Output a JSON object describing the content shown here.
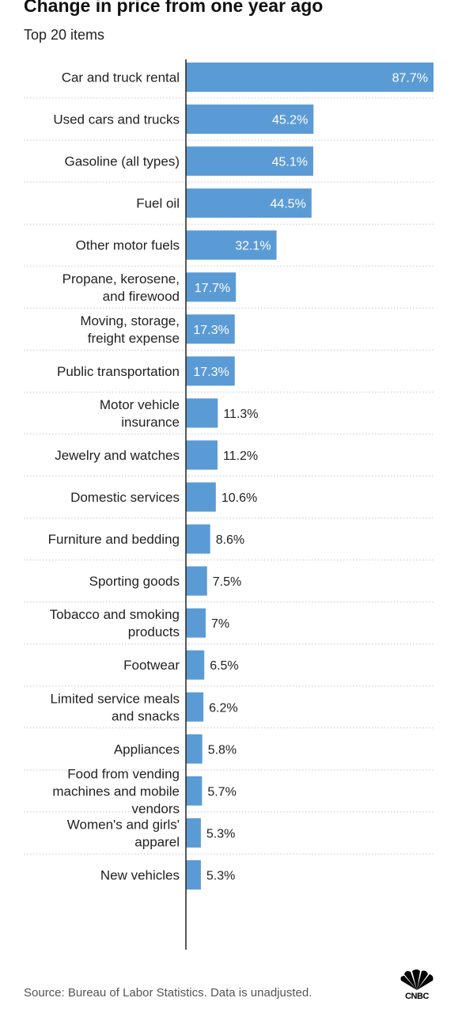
{
  "title": "Change in price from one year ago",
  "subtitle": "Top 20 items",
  "source": "Source: Bureau of Labor Statistics. Data is unadjusted.",
  "logo": {
    "text": "CNBC",
    "icon": "peacock-logo-icon"
  },
  "colors": {
    "bar": "#5b9bd5",
    "grid": "#c8c8c8",
    "axis": "#222222"
  },
  "chart_data": {
    "type": "bar",
    "orientation": "horizontal",
    "title": "Change in price from one year ago",
    "subtitle": "Top 20 items",
    "categories": [
      [
        "Car and truck rental"
      ],
      [
        "Used cars and trucks"
      ],
      [
        "Gasoline (all types)"
      ],
      [
        "Fuel oil"
      ],
      [
        "Other motor fuels"
      ],
      [
        "Propane, kerosene,",
        "and firewood"
      ],
      [
        "Moving, storage,",
        "freight expense"
      ],
      [
        "Public transportation"
      ],
      [
        "Motor vehicle",
        "insurance"
      ],
      [
        "Jewelry and watches"
      ],
      [
        "Domestic services"
      ],
      [
        "Furniture and bedding"
      ],
      [
        "Sporting goods"
      ],
      [
        "Tobacco and smoking",
        "products"
      ],
      [
        "Footwear"
      ],
      [
        "Limited service meals",
        "and snacks"
      ],
      [
        "Appliances"
      ],
      [
        "Food from vending",
        "machines and mobile",
        "vendors"
      ],
      [
        "Women's and girls'",
        "apparel"
      ],
      [
        "New vehicles"
      ]
    ],
    "values": [
      87.7,
      45.2,
      45.1,
      44.5,
      32.1,
      17.7,
      17.3,
      17.3,
      11.3,
      11.2,
      10.6,
      8.6,
      7.5,
      7,
      6.5,
      6.2,
      5.8,
      5.7,
      5.3,
      5.3
    ],
    "value_labels": [
      "87.7%",
      "45.2%",
      "45.1%",
      "44.5%",
      "32.1%",
      "17.7%",
      "17.3%",
      "17.3%",
      "11.3%",
      "11.2%",
      "10.6%",
      "8.6%",
      "7.5%",
      "7%",
      "6.5%",
      "6.2%",
      "5.8%",
      "5.7%",
      "5.3%",
      "5.3%"
    ],
    "xlim": [
      0,
      87.7
    ],
    "grid": "dotted row separators",
    "legend": "none"
  }
}
